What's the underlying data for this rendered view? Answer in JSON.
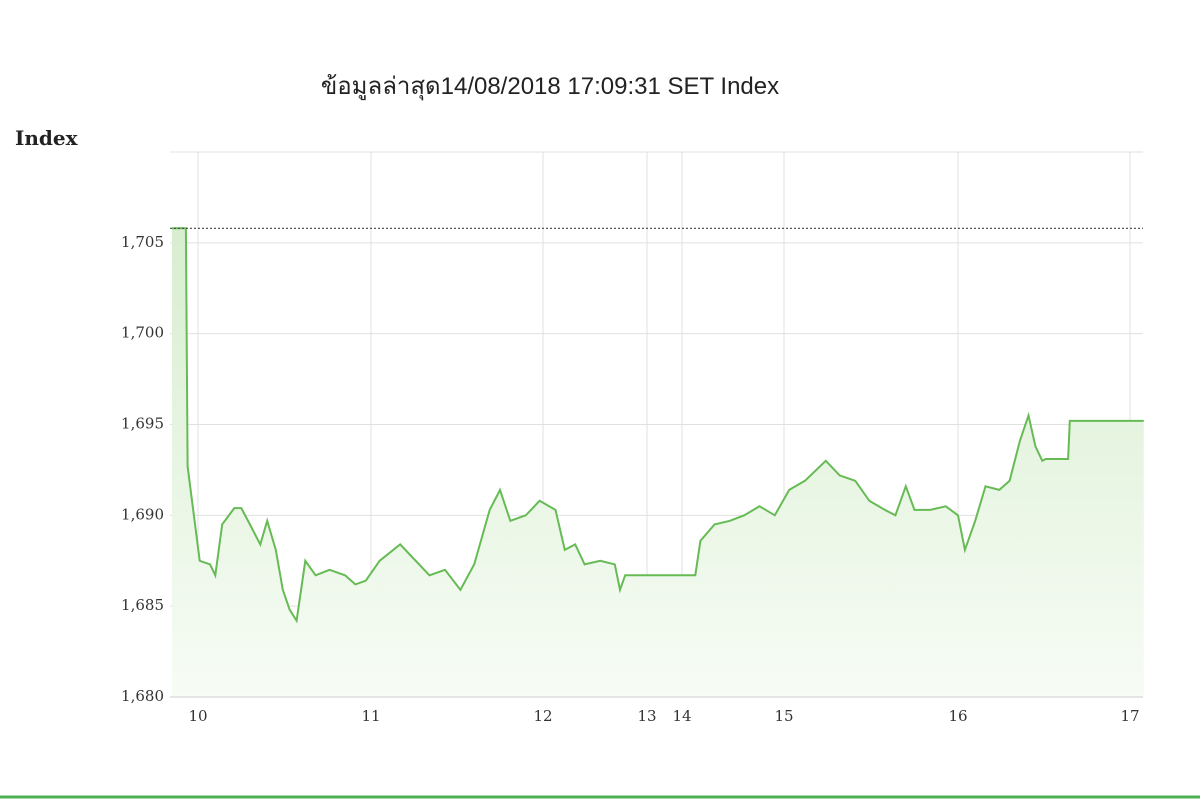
{
  "chart_data": {
    "type": "line",
    "title": "ข้อมูลล่าสุด14/08/2018 17:09:31  SET Index",
    "y_label": "Index",
    "xlim": [
      9.85,
      17.08
    ],
    "xticks": [
      10,
      11,
      12,
      13,
      14,
      15,
      16,
      17
    ],
    "ylim": [
      1680,
      1710
    ],
    "yticks": [
      {
        "value": 1680,
        "label": "1,680"
      },
      {
        "value": 1685,
        "label": "1,685"
      },
      {
        "value": 1690,
        "label": "1,690"
      },
      {
        "value": 1695,
        "label": "1,695"
      },
      {
        "value": 1700,
        "label": "1,700"
      },
      {
        "value": 1705,
        "label": "1,705"
      }
    ],
    "grid": true,
    "reference_line": 1705.8,
    "series": [
      {
        "color": "#66bb55",
        "x": [
          9.85,
          9.93,
          9.94,
          10.01,
          10.07,
          10.1,
          10.14,
          10.21,
          10.25,
          10.3,
          10.36,
          10.4,
          10.45,
          10.49,
          10.53,
          10.57,
          10.62,
          10.68,
          10.76,
          10.85,
          10.91,
          10.97,
          11.05,
          11.17,
          11.26,
          11.34,
          11.43,
          11.52,
          11.6,
          11.69,
          11.75,
          11.81,
          11.9,
          11.98,
          12.12,
          12.21,
          12.31,
          12.4,
          12.55,
          12.69,
          12.74,
          12.79,
          13.09,
          14.13,
          14.18,
          14.32,
          14.47,
          14.61,
          14.76,
          14.91,
          15.03,
          15.12,
          15.24,
          15.32,
          15.41,
          15.49,
          15.58,
          15.64,
          15.7,
          15.75,
          15.84,
          15.93,
          16.0,
          16.04,
          16.1,
          16.16,
          16.24,
          16.3,
          16.36,
          16.41,
          16.45,
          16.49,
          16.51,
          16.64,
          16.65,
          17.08
        ],
        "values": [
          1705.8,
          1705.8,
          1692.7,
          1687.5,
          1687.3,
          1686.7,
          1689.5,
          1690.4,
          1690.4,
          1689.5,
          1688.4,
          1689.7,
          1688.1,
          1685.9,
          1684.8,
          1684.2,
          1687.5,
          1686.7,
          1687.0,
          1686.7,
          1686.2,
          1686.4,
          1687.5,
          1688.4,
          1687.5,
          1686.7,
          1687.0,
          1685.9,
          1687.3,
          1690.3,
          1691.4,
          1689.7,
          1690.0,
          1690.8,
          1690.3,
          1688.1,
          1688.4,
          1687.3,
          1687.5,
          1687.3,
          1685.9,
          1686.7,
          1686.7,
          1686.7,
          1688.6,
          1689.5,
          1689.7,
          1690.0,
          1690.5,
          1690.0,
          1691.4,
          1691.9,
          1693.0,
          1692.2,
          1691.9,
          1690.8,
          1690.3,
          1690.0,
          1691.6,
          1690.3,
          1690.3,
          1690.5,
          1690.0,
          1688.1,
          1689.7,
          1691.6,
          1691.4,
          1691.9,
          1694.1,
          1695.5,
          1693.8,
          1693.0,
          1693.1,
          1693.1,
          1695.2,
          1695.2
        ]
      }
    ]
  }
}
